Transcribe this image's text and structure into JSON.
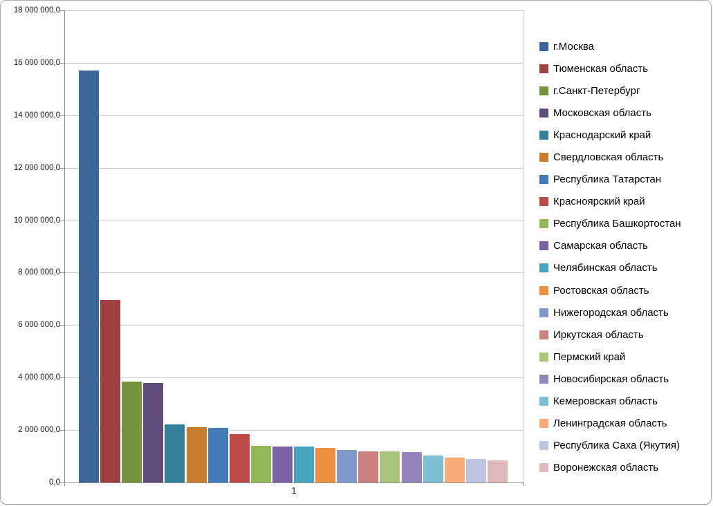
{
  "chart_data": {
    "type": "bar",
    "title": "",
    "categories": [
      "1"
    ],
    "xlabel": "",
    "ylabel": "",
    "ylim": [
      0,
      18000000
    ],
    "y_tick_step": 2000000,
    "y_tick_labels": [
      "0,0",
      "2 000 000,0",
      "4 000 000,0",
      "6 000 000,0",
      "8 000 000,0",
      "10 000 000,0",
      "12 000 000,0",
      "14 000 000,0",
      "16 000 000,0",
      "18 000 000,0"
    ],
    "grid": true,
    "legend_position": "right",
    "series": [
      {
        "name": "г.Москва",
        "value": 15700000,
        "color": "#3D6699"
      },
      {
        "name": "Тюменская область",
        "value": 6960000,
        "color": "#9E413E"
      },
      {
        "name": "г.Санкт-Петербург",
        "value": 3850000,
        "color": "#77943D"
      },
      {
        "name": "Московская область",
        "value": 3800000,
        "color": "#5F4C7D"
      },
      {
        "name": "Краснодарский край",
        "value": 2210000,
        "color": "#337F99"
      },
      {
        "name": "Свердловская область",
        "value": 2110000,
        "color": "#C87D2E"
      },
      {
        "name": "Республика Татарстан",
        "value": 2090000,
        "color": "#4479B8"
      },
      {
        "name": "Красноярский край",
        "value": 1850000,
        "color": "#BB4A47"
      },
      {
        "name": "Республика Башкортостан",
        "value": 1390000,
        "color": "#96B755"
      },
      {
        "name": "Самарская область",
        "value": 1370000,
        "color": "#7A62A2"
      },
      {
        "name": "Челябинская область",
        "value": 1360000,
        "color": "#47A5C2"
      },
      {
        "name": "Ростовская область",
        "value": 1320000,
        "color": "#EC9144"
      },
      {
        "name": "Нижегородская область",
        "value": 1240000,
        "color": "#8099C8"
      },
      {
        "name": "Иркутская область",
        "value": 1190000,
        "color": "#C8817F"
      },
      {
        "name": "Пермский край",
        "value": 1180000,
        "color": "#ABC47C"
      },
      {
        "name": "Новосибирская область",
        "value": 1150000,
        "color": "#9486BC"
      },
      {
        "name": "Кемеровская область",
        "value": 1030000,
        "color": "#7FBFD5"
      },
      {
        "name": "Ленинградская область",
        "value": 950000,
        "color": "#F9AC77"
      },
      {
        "name": "Республика Саха (Якутия)",
        "value": 890000,
        "color": "#BCC6E2"
      },
      {
        "name": "Воронежская область",
        "value": 845000,
        "color": "#DFB9BB"
      }
    ],
    "colors": {
      "gridline": "#C9C9C9",
      "axis": "#8F8F8F",
      "tick_text": "#141414",
      "legend_text": "#000000",
      "frame_border": "#A9A9A9",
      "background": "#FFFFFF"
    }
  }
}
